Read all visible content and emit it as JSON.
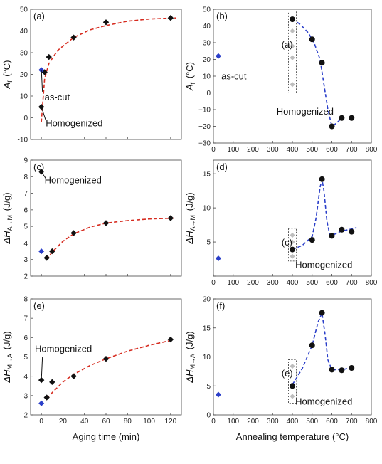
{
  "chart_data": [
    {
      "id": "a",
      "type": "scatter",
      "panel_label": "(a)",
      "xlim": [
        -10,
        130
      ],
      "ylim": [
        -10,
        50
      ],
      "xticks": [
        0,
        20,
        40,
        60,
        80,
        100,
        120
      ],
      "yticks": [
        -10,
        0,
        10,
        20,
        30,
        40,
        50
      ],
      "xtick_labels": [
        "",
        "",
        "",
        "",
        "",
        "",
        ""
      ],
      "ytick_labels": [
        "-10",
        "0",
        "10",
        "20",
        "30",
        "40",
        "50"
      ],
      "ylabel": {
        "main": "A",
        "sub": "f",
        "unit": "(°C)"
      },
      "xlabel": "",
      "zero_line": false,
      "grid": false,
      "points_black": [
        [
          0,
          5
        ],
        [
          3,
          21
        ],
        [
          7,
          28
        ],
        [
          30,
          37
        ],
        [
          60,
          44
        ],
        [
          120,
          46
        ]
      ],
      "points_blue": [
        [
          0,
          22
        ]
      ],
      "points_gray": [],
      "fit": {
        "color": "#d62b1f",
        "points": [
          [
            0,
            -2
          ],
          [
            3,
            18
          ],
          [
            7,
            25
          ],
          [
            15,
            31
          ],
          [
            30,
            37
          ],
          [
            45,
            40.5
          ],
          [
            60,
            42.5
          ],
          [
            80,
            44.5
          ],
          [
            100,
            45.5
          ],
          [
            125,
            46
          ]
        ]
      },
      "annotations": [
        {
          "text": "as-cut",
          "x": 3,
          "y": 8,
          "arrow_to": [
            0,
            22
          ],
          "arrow_from": [
            1,
            12
          ]
        },
        {
          "text": "Homogenized",
          "x": 4,
          "y": -4,
          "arrow_to": [
            0,
            5
          ],
          "arrow_from": [
            4,
            -1
          ]
        }
      ],
      "dashed_box": null
    },
    {
      "id": "b",
      "type": "scatter",
      "panel_label": "(b)",
      "xlim": [
        0,
        800
      ],
      "ylim": [
        -30,
        50
      ],
      "xticks": [
        0,
        100,
        200,
        300,
        400,
        500,
        600,
        700,
        800
      ],
      "yticks": [
        -30,
        -20,
        -10,
        0,
        10,
        20,
        30,
        40,
        50
      ],
      "xtick_labels": [
        "0",
        "100",
        "200",
        "300",
        "400",
        "500",
        "600",
        "700",
        "800"
      ],
      "ytick_labels": [
        "−30",
        "−20",
        "−10",
        "0",
        "10",
        "20",
        "30",
        "40",
        "50"
      ],
      "ylabel": {
        "main": "A",
        "sub": "f",
        "unit": "(°C)"
      },
      "xlabel": "",
      "zero_line": true,
      "grid": false,
      "points_black": [
        [
          400,
          44
        ],
        [
          500,
          32
        ],
        [
          550,
          18
        ],
        [
          600,
          -20
        ],
        [
          650,
          -15
        ],
        [
          700,
          -15
        ]
      ],
      "points_blue": [
        [
          25,
          22
        ]
      ],
      "points_gray": [
        [
          400,
          5
        ],
        [
          400,
          21
        ],
        [
          400,
          28
        ],
        [
          400,
          37
        ],
        [
          400,
          44
        ]
      ],
      "fit": {
        "color": "#2a3ec9",
        "points": [
          [
            400,
            44
          ],
          [
            440,
            41
          ],
          [
            480,
            36
          ],
          [
            510,
            30
          ],
          [
            540,
            20
          ],
          [
            560,
            5
          ],
          [
            580,
            -10
          ],
          [
            600,
            -20
          ],
          [
            625,
            -18
          ],
          [
            650,
            -15
          ]
        ]
      },
      "annotations": [
        {
          "text": "(a)",
          "x": 345,
          "y": 27
        },
        {
          "text": "as-cut",
          "x": 40,
          "y": 8
        },
        {
          "text": "Homogenized",
          "x": 320,
          "y": -13
        }
      ],
      "dashed_box": {
        "x0": 380,
        "x1": 420,
        "y0": 0,
        "y1": 49
      }
    },
    {
      "id": "c",
      "type": "scatter",
      "panel_label": "(c)",
      "xlim": [
        -10,
        130
      ],
      "ylim": [
        2,
        9
      ],
      "xticks": [
        0,
        20,
        40,
        60,
        80,
        100,
        120
      ],
      "yticks": [
        2,
        3,
        4,
        5,
        6,
        7,
        8,
        9
      ],
      "xtick_labels": [
        "",
        "",
        "",
        "",
        "",
        "",
        ""
      ],
      "ytick_labels": [
        "2",
        "3",
        "4",
        "5",
        "6",
        "7",
        "8",
        "9"
      ],
      "ylabel": {
        "main": "ΔH",
        "sub": "A→M",
        "unit": "(J/g)"
      },
      "xlabel": "",
      "zero_line": false,
      "grid": false,
      "points_black": [
        [
          0,
          8.3
        ],
        [
          5,
          3.1
        ],
        [
          10,
          3.5
        ],
        [
          30,
          4.6
        ],
        [
          60,
          5.2
        ],
        [
          120,
          5.5
        ]
      ],
      "points_blue": [
        [
          0,
          3.5
        ]
      ],
      "points_gray": [],
      "fit": {
        "color": "#d62b1f",
        "points": [
          [
            5,
            3.0
          ],
          [
            10,
            3.45
          ],
          [
            20,
            4.1
          ],
          [
            30,
            4.55
          ],
          [
            45,
            4.95
          ],
          [
            60,
            5.2
          ],
          [
            80,
            5.35
          ],
          [
            100,
            5.45
          ],
          [
            125,
            5.5
          ]
        ]
      },
      "annotations": [
        {
          "text": "Homogenized",
          "x": 3,
          "y": 7.6,
          "arrow_to": [
            0,
            8.3
          ],
          "arrow_from": [
            4,
            7.9
          ]
        }
      ],
      "dashed_box": null
    },
    {
      "id": "d",
      "type": "scatter",
      "panel_label": "(d)",
      "xlim": [
        0,
        800
      ],
      "ylim": [
        0,
        17
      ],
      "xticks": [
        0,
        100,
        200,
        300,
        400,
        500,
        600,
        700,
        800
      ],
      "yticks": [
        0,
        5,
        10,
        15
      ],
      "xtick_labels": [
        "0",
        "100",
        "200",
        "300",
        "400",
        "500",
        "600",
        "700",
        "800"
      ],
      "ytick_labels": [
        "",
        "5",
        "10",
        "15"
      ],
      "ylabel": {
        "main": "ΔH",
        "sub": "A→M",
        "unit": "(J/g)"
      },
      "xlabel": "",
      "zero_line": false,
      "grid": false,
      "points_black": [
        [
          400,
          3.9
        ],
        [
          500,
          5.3
        ],
        [
          550,
          14.2
        ],
        [
          600,
          5.9
        ],
        [
          650,
          6.8
        ],
        [
          700,
          6.5
        ]
      ],
      "points_blue": [
        [
          25,
          2.6
        ]
      ],
      "points_gray": [
        [
          400,
          2.9
        ],
        [
          400,
          3.9
        ],
        [
          400,
          5.0
        ],
        [
          400,
          6.0
        ]
      ],
      "fit": {
        "color": "#2a3ec9",
        "points": [
          [
            400,
            3.9
          ],
          [
            450,
            4.5
          ],
          [
            500,
            5.8
          ],
          [
            520,
            8.5
          ],
          [
            540,
            13
          ],
          [
            550,
            14.2
          ],
          [
            560,
            12.5
          ],
          [
            575,
            8
          ],
          [
            590,
            6.0
          ],
          [
            610,
            6.1
          ],
          [
            650,
            6.6
          ],
          [
            700,
            6.9
          ],
          [
            725,
            7.1
          ]
        ]
      },
      "annotations": [
        {
          "text": "(c)",
          "x": 345,
          "y": 4.5
        },
        {
          "text": "Homogenized",
          "x": 415,
          "y": 1.2
        }
      ],
      "dashed_box": {
        "x0": 380,
        "x1": 420,
        "y0": 2.2,
        "y1": 7.0
      }
    },
    {
      "id": "e",
      "type": "scatter",
      "panel_label": "(e)",
      "xlim": [
        -10,
        130
      ],
      "ylim": [
        2,
        8
      ],
      "xticks": [
        0,
        20,
        40,
        60,
        80,
        100,
        120
      ],
      "yticks": [
        2,
        3,
        4,
        5,
        6,
        7,
        8
      ],
      "xtick_labels": [
        "0",
        "20",
        "40",
        "60",
        "80",
        "100",
        "120"
      ],
      "ytick_labels": [
        "2",
        "3",
        "4",
        "5",
        "6",
        "7",
        "8"
      ],
      "ylabel": {
        "main": "ΔH",
        "sub": "M→A",
        "unit": "(J/g)"
      },
      "xlabel": "Aging time (min)",
      "zero_line": false,
      "grid": false,
      "points_black": [
        [
          0,
          3.8
        ],
        [
          5,
          2.9
        ],
        [
          10,
          3.7
        ],
        [
          30,
          4.0
        ],
        [
          60,
          4.9
        ],
        [
          120,
          5.9
        ]
      ],
      "points_blue": [
        [
          0,
          2.6
        ]
      ],
      "points_gray": [],
      "fit": {
        "color": "#d62b1f",
        "points": [
          [
            5,
            2.85
          ],
          [
            10,
            3.15
          ],
          [
            20,
            3.7
          ],
          [
            30,
            4.1
          ],
          [
            45,
            4.55
          ],
          [
            60,
            4.9
          ],
          [
            80,
            5.3
          ],
          [
            100,
            5.6
          ],
          [
            120,
            5.85
          ]
        ]
      },
      "annotations": [
        {
          "text": "Homogenized",
          "x": -6,
          "y": 5.25,
          "arrow_to": [
            0,
            3.8
          ],
          "arrow_from": [
            1,
            5.0
          ]
        }
      ],
      "dashed_box": null
    },
    {
      "id": "f",
      "type": "scatter",
      "panel_label": "(f)",
      "xlim": [
        0,
        800
      ],
      "ylim": [
        0,
        20
      ],
      "xticks": [
        0,
        100,
        200,
        300,
        400,
        500,
        600,
        700,
        800
      ],
      "yticks": [
        0,
        5,
        10,
        15,
        20
      ],
      "xtick_labels": [
        "0",
        "100",
        "200",
        "300",
        "400",
        "500",
        "600",
        "700",
        "800"
      ],
      "ytick_labels": [
        "0",
        "5",
        "10",
        "15",
        "20"
      ],
      "ylabel": {
        "main": "ΔH",
        "sub": "M→A",
        "unit": "(J/g)"
      },
      "xlabel": "Annealing temperature (°C)",
      "zero_line": false,
      "grid": false,
      "points_black": [
        [
          400,
          5.0
        ],
        [
          500,
          12.0
        ],
        [
          550,
          17.6
        ],
        [
          600,
          7.8
        ],
        [
          650,
          7.7
        ],
        [
          700,
          8.1
        ]
      ],
      "points_blue": [
        [
          25,
          3.5
        ]
      ],
      "points_gray": [
        [
          400,
          3.2
        ],
        [
          400,
          5.0
        ],
        [
          400,
          8.4
        ]
      ],
      "fit": {
        "color": "#2a3ec9",
        "points": [
          [
            400,
            5.2
          ],
          [
            450,
            8.0
          ],
          [
            500,
            12.0
          ],
          [
            530,
            16
          ],
          [
            550,
            17.6
          ],
          [
            565,
            14
          ],
          [
            580,
            9.5
          ],
          [
            600,
            7.8
          ],
          [
            650,
            7.8
          ],
          [
            700,
            8.1
          ]
        ]
      },
      "annotations": [
        {
          "text": "(e)",
          "x": 345,
          "y": 6.6
        },
        {
          "text": "Homogenized",
          "x": 415,
          "y": 1.8
        }
      ],
      "dashed_box": {
        "x0": 380,
        "x1": 420,
        "y0": 2.0,
        "y1": 9.5
      }
    }
  ]
}
